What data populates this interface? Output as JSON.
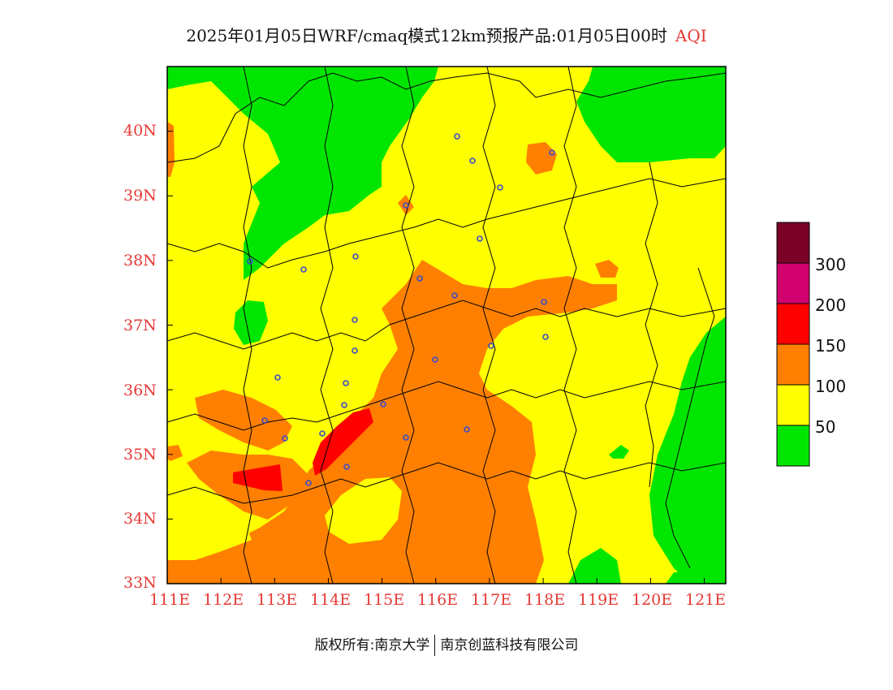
{
  "title": {
    "main": "2025年01月05日WRF/cmaq模式12km预报产品:01月05日00时",
    "variable": "AQI"
  },
  "axes": {
    "x_ticks": [
      "111E",
      "112E",
      "113E",
      "114E",
      "115E",
      "116E",
      "117E",
      "118E",
      "119E",
      "120E",
      "121E"
    ],
    "y_ticks": [
      "40N",
      "39N",
      "38N",
      "37N",
      "36N",
      "35N",
      "34N",
      "33N"
    ],
    "lon_range": [
      111,
      121.4
    ],
    "lat_range": [
      33,
      41
    ]
  },
  "legend": {
    "levels": [
      "300",
      "200",
      "150",
      "100",
      "50"
    ],
    "colors": [
      "#7a0026",
      "#d0006f",
      "#ff0000",
      "#ff8000",
      "#ffff00",
      "#00e600"
    ]
  },
  "colors": {
    "good": "#00e600",
    "moderate": "#ffff00",
    "unhealthy_sensitive": "#ff8000",
    "unhealthy": "#ff0000",
    "very_unhealthy": "#d0006f",
    "hazardous": "#7a0026",
    "tick_text": "#e53935",
    "station_marker": "#3a4cc9"
  },
  "footer": {
    "left": "版权所有:南京大学",
    "right": "南京创蓝科技有限公司"
  }
}
